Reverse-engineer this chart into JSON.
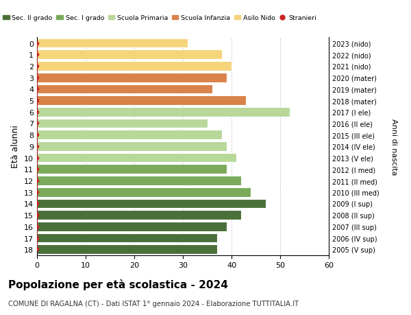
{
  "ages_top_to_bottom": [
    18,
    17,
    16,
    15,
    14,
    13,
    12,
    11,
    10,
    9,
    8,
    7,
    6,
    5,
    4,
    3,
    2,
    1,
    0
  ],
  "values": [
    37,
    37,
    39,
    42,
    47,
    44,
    42,
    39,
    41,
    39,
    38,
    35,
    52,
    43,
    36,
    39,
    40,
    38,
    31
  ],
  "right_labels_top_to_bottom": [
    "2005 (V sup)",
    "2006 (IV sup)",
    "2007 (III sup)",
    "2008 (II sup)",
    "2009 (I sup)",
    "2010 (III med)",
    "2011 (II med)",
    "2012 (I med)",
    "2013 (V ele)",
    "2014 (IV ele)",
    "2015 (III ele)",
    "2016 (II ele)",
    "2017 (I ele)",
    "2018 (mater)",
    "2019 (mater)",
    "2020 (mater)",
    "2021 (nido)",
    "2022 (nido)",
    "2023 (nido)"
  ],
  "bar_colors": [
    "#4a7039",
    "#4a7039",
    "#4a7039",
    "#4a7039",
    "#4a7039",
    "#7aaa5a",
    "#7aaa5a",
    "#7aaa5a",
    "#b8d89a",
    "#b8d89a",
    "#b8d89a",
    "#b8d89a",
    "#b8d89a",
    "#d9824a",
    "#d9824a",
    "#d9824a",
    "#f5d47a",
    "#f5d47a",
    "#f5d47a"
  ],
  "legend_labels": [
    "Sec. II grado",
    "Sec. I grado",
    "Scuola Primaria",
    "Scuola Infanzia",
    "Asilo Nido",
    "Stranieri"
  ],
  "legend_colors": [
    "#4a7039",
    "#7aaa5a",
    "#b8d89a",
    "#d9824a",
    "#f5d47a",
    "#cc2222"
  ],
  "right_ylabel": "Anni di nascita",
  "title": "Popolazione per eta scolastica - 2024",
  "subtitle": "COMUNE DI RAGALNA (CT) - Dati ISTAT 1° gennaio 2024 - Elaborazione TUTTITALIA.IT",
  "xlim": [
    0,
    60
  ],
  "xticks": [
    0,
    10,
    20,
    30,
    40,
    50,
    60
  ],
  "stranieri_color": "#cc2222",
  "grid_color": "#cccccc"
}
